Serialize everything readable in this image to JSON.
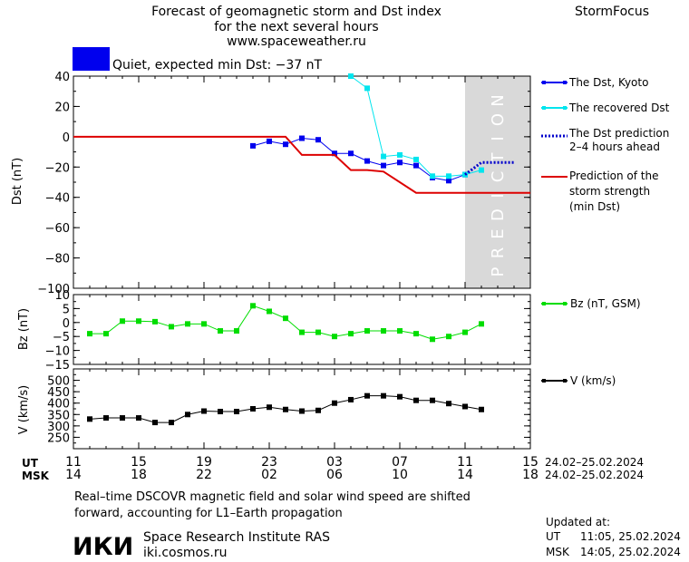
{
  "header": {
    "title_line1": "Forecast of geomagnetic storm and Dst index",
    "title_line2": "for the next several hours",
    "url": "www.spaceweather.ru",
    "brand": "StormFocus",
    "status_text": "Quiet, expected min Dst: −37 nT",
    "status_color": "#0000ee"
  },
  "time_axis": {
    "ut_label": "UT",
    "msk_label": "MSK",
    "ut_ticks": [
      "11",
      "15",
      "19",
      "23",
      "03",
      "07",
      "11",
      "15"
    ],
    "msk_ticks": [
      "14",
      "18",
      "22",
      "02",
      "06",
      "10",
      "14",
      "18"
    ],
    "ut_range": "24.02–25.02.2024",
    "msk_range": "24.02–25.02.2024"
  },
  "prediction_label": "PREDICTION",
  "legend": {
    "dst_kyoto": "The Dst, Kyoto",
    "dst_recovered": "The recovered Dst",
    "dst_prediction_1": "The Dst prediction",
    "dst_prediction_2": "2–4 hours ahead",
    "storm_1": "Prediction of the",
    "storm_2": "storm strength",
    "storm_3": "(min Dst)",
    "bz": "Bz (nT, GSM)",
    "v": "V (km/s)"
  },
  "footer": {
    "note_line1": "Real–time DSCOVR magnetic field and solar wind speed are shifted",
    "note_line2": "forward, accounting for L1–Earth propagation",
    "logo_text": "ИКИ",
    "institute": "Space Research Institute RAS",
    "site": "iki.cosmos.ru",
    "updated_label": "Updated at:",
    "updated_ut_label": "UT",
    "updated_ut": "11:05, 25.02.2024",
    "updated_msk_label": "MSK",
    "updated_msk": "14:05, 25.02.2024"
  },
  "colors": {
    "dst_kyoto": "#0000ee",
    "dst_recovered": "#00e5ee",
    "dst_prediction": "#0000cc",
    "storm": "#dd0000",
    "bz": "#00dd00",
    "v": "#000000",
    "prediction_band": "#d9d9d9"
  },
  "chart_data": [
    {
      "type": "line",
      "ylabel": "Dst (nT)",
      "x_unit": "hours since 11 UT, 24.02.2024",
      "xlim": [
        0,
        28
      ],
      "ylim": [
        -100,
        40
      ],
      "yticks": [
        40,
        20,
        0,
        -20,
        -40,
        -60,
        -80,
        -100
      ],
      "prediction_band": [
        24,
        28
      ],
      "series": [
        {
          "name": "The Dst, Kyoto",
          "x": [
            11,
            12,
            13,
            14,
            15,
            16,
            17,
            18,
            19,
            20,
            21,
            22,
            23,
            24
          ],
          "y": [
            -6,
            -3,
            -5,
            -1,
            -2,
            -11,
            -11,
            -16,
            -19,
            -17,
            -19,
            -27,
            -29,
            -25
          ]
        },
        {
          "name": "The recovered Dst",
          "x": [
            17,
            18,
            19,
            20,
            21,
            22,
            23,
            24,
            25
          ],
          "y": [
            40,
            32,
            -13,
            -12,
            -15,
            -26,
            -26,
            -25,
            -22
          ]
        },
        {
          "name": "The Dst prediction 2–4 hours ahead",
          "x": [
            24,
            25,
            26,
            27
          ],
          "y": [
            -25,
            -17,
            -17,
            -17
          ]
        },
        {
          "name": "Prediction of the storm strength (min Dst)",
          "x": [
            0,
            13,
            14,
            16,
            17,
            18,
            19,
            21,
            28
          ],
          "y": [
            0,
            0,
            -12,
            -12,
            -22,
            -22,
            -23,
            -37,
            -37
          ]
        }
      ]
    },
    {
      "type": "line",
      "ylabel": "Bz (nT)",
      "xlim": [
        0,
        28
      ],
      "ylim": [
        -15,
        10
      ],
      "yticks": [
        10,
        5,
        0,
        -5,
        -10,
        -15
      ],
      "series": [
        {
          "name": "Bz (nT, GSM)",
          "x": [
            1,
            2,
            3,
            4,
            5,
            6,
            7,
            8,
            9,
            10,
            11,
            12,
            13,
            14,
            15,
            16,
            17,
            18,
            19,
            20,
            21,
            22,
            23,
            24,
            25
          ],
          "y": [
            -4,
            -4,
            0.5,
            0.5,
            0.3,
            -1.5,
            -0.5,
            -0.5,
            -3,
            -3,
            6,
            4,
            1.5,
            -3.5,
            -3.5,
            -5,
            -4,
            -3,
            -3,
            -3,
            -4,
            -6,
            -5,
            -3.5,
            -0.5
          ]
        }
      ]
    },
    {
      "type": "line",
      "ylabel": "V (km/s)",
      "xlim": [
        0,
        28
      ],
      "ylim": [
        200,
        550
      ],
      "yticks": [
        500,
        450,
        400,
        350,
        300,
        250
      ],
      "series": [
        {
          "name": "V (km/s)",
          "x": [
            1,
            2,
            3,
            4,
            5,
            6,
            7,
            8,
            9,
            10,
            11,
            12,
            13,
            14,
            15,
            16,
            17,
            18,
            19,
            20,
            21,
            22,
            23,
            24,
            25
          ],
          "y": [
            330,
            335,
            335,
            335,
            315,
            315,
            350,
            365,
            363,
            363,
            375,
            382,
            372,
            365,
            368,
            400,
            415,
            432,
            432,
            428,
            412,
            412,
            398,
            385,
            372
          ]
        }
      ]
    }
  ]
}
